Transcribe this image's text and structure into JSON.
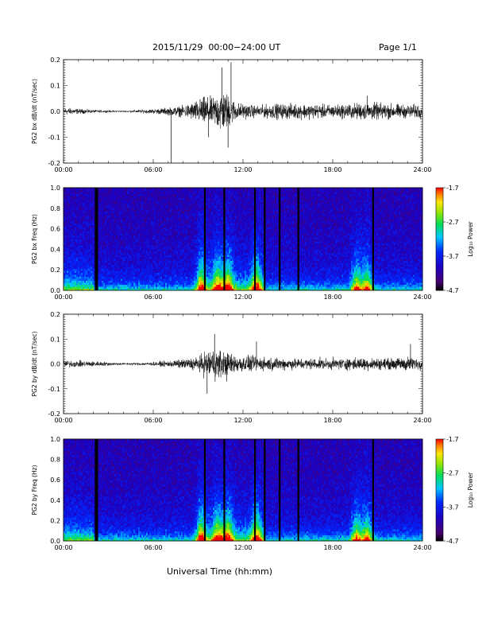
{
  "header": {
    "title": "2015/11/29  00:00−24:00 UT",
    "page": "Page 1/1"
  },
  "xlabel": "Universal Time (hh:mm)",
  "chart_data": [
    {
      "type": "line",
      "ylabel": "PG2 bx dB/dt (nT/sec)",
      "ylim": [
        -0.2,
        0.2
      ],
      "yticks": [
        "0.2",
        "0.1",
        "0.0",
        "-0.1",
        "-0.2"
      ],
      "ytick_values": [
        0.2,
        0.1,
        0.0,
        -0.1,
        -0.2
      ],
      "xticks": [
        "00:00",
        "06:00",
        "12:00",
        "18:00",
        "24:00"
      ],
      "x_hours": [
        0,
        2,
        4,
        6,
        7,
        8,
        9,
        9.5,
        10,
        10.5,
        11,
        11.5,
        12,
        13,
        14,
        16,
        18,
        20,
        21,
        22,
        23,
        24
      ],
      "envelope": [
        0.02,
        0.008,
        0.004,
        0.012,
        0.02,
        0.03,
        0.06,
        0.08,
        0.07,
        0.12,
        0.09,
        0.05,
        0.04,
        0.03,
        0.04,
        0.04,
        0.035,
        0.045,
        0.045,
        0.04,
        0.035,
        0.04
      ],
      "spikes": [
        {
          "x": 7.2,
          "y": -0.2
        },
        {
          "x": 11.2,
          "y": 0.19
        },
        {
          "x": 11.0,
          "y": -0.14
        },
        {
          "x": 10.6,
          "y": 0.17
        },
        {
          "x": 9.7,
          "y": -0.1
        },
        {
          "x": 20.3,
          "y": 0.06
        }
      ]
    },
    {
      "type": "heatmap",
      "ylabel": "PG2 bx Freq (Hz)",
      "ylim": [
        0.0,
        1.0
      ],
      "yticks": [
        "1.0",
        "0.8",
        "0.6",
        "0.4",
        "0.2",
        "0.0"
      ],
      "ytick_values": [
        1.0,
        0.8,
        0.6,
        0.4,
        0.2,
        0.0
      ],
      "xticks": [
        "00:00",
        "06:00",
        "12:00",
        "18:00",
        "24:00"
      ],
      "colorbar": {
        "label": "Log₁₀ Power",
        "ticks": [
          "-1.7",
          "-2.7",
          "-3.7",
          "-4.7"
        ],
        "values": [
          -1.7,
          -2.7,
          -3.7,
          -4.7
        ]
      },
      "gaps_hours": [
        2.2,
        9.45,
        10.75,
        12.8,
        13.45,
        14.45,
        15.7,
        20.7
      ],
      "active_hours": [
        9.2,
        10.3,
        11.0,
        12.9,
        19.6,
        20.3
      ]
    },
    {
      "type": "line",
      "ylabel": "PG2 by dB/dt (nT/sec)",
      "ylim": [
        -0.2,
        0.2
      ],
      "yticks": [
        "0.2",
        "0.1",
        "0.0",
        "-0.1",
        "-0.2"
      ],
      "ytick_values": [
        0.2,
        0.1,
        0.0,
        -0.1,
        -0.2
      ],
      "xticks": [
        "00:00",
        "06:00",
        "12:00",
        "18:00",
        "24:00"
      ],
      "x_hours": [
        0,
        2,
        4,
        6,
        8,
        9,
        9.5,
        10,
        10.5,
        11,
        12,
        13,
        14,
        16,
        18,
        20,
        22,
        23,
        24
      ],
      "envelope": [
        0.02,
        0.015,
        0.006,
        0.01,
        0.025,
        0.04,
        0.07,
        0.09,
        0.08,
        0.06,
        0.045,
        0.04,
        0.035,
        0.03,
        0.03,
        0.035,
        0.03,
        0.04,
        0.03
      ],
      "spikes": [
        {
          "x": 9.6,
          "y": -0.12
        },
        {
          "x": 10.1,
          "y": 0.12
        },
        {
          "x": 12.9,
          "y": 0.09
        },
        {
          "x": 23.2,
          "y": 0.08
        },
        {
          "x": 10.9,
          "y": -0.07
        }
      ]
    },
    {
      "type": "heatmap",
      "ylabel": "PG2 by Freq (Hz)",
      "ylim": [
        0.0,
        1.0
      ],
      "yticks": [
        "1.0",
        "0.8",
        "0.6",
        "0.4",
        "0.2",
        "0.0"
      ],
      "ytick_values": [
        1.0,
        0.8,
        0.6,
        0.4,
        0.2,
        0.0
      ],
      "xticks": [
        "00:00",
        "06:00",
        "12:00",
        "18:00",
        "24:00"
      ],
      "colorbar": {
        "label": "Log₁₀ Power",
        "ticks": [
          "-1.7",
          "-2.7",
          "-3.7",
          "-4.7"
        ],
        "values": [
          -1.7,
          -2.7,
          -3.7,
          -4.7
        ]
      },
      "gaps_hours": [
        2.2,
        9.45,
        10.75,
        12.8,
        13.45,
        14.45,
        15.7,
        20.7
      ],
      "active_hours": [
        9.2,
        10.3,
        11.0,
        12.9,
        19.6,
        20.3
      ]
    }
  ]
}
